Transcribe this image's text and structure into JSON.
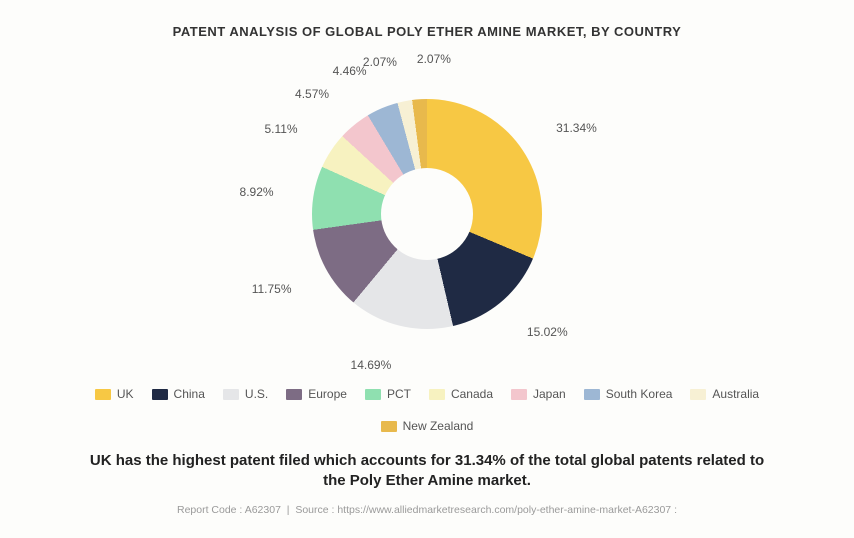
{
  "title": "PATENT ANALYSIS OF GLOBAL POLY ETHER AMINE MARKET, BY COUNTRY",
  "chart": {
    "type": "donut",
    "background_color": "#fdfdfb",
    "inner_radius_ratio": 0.4,
    "label_fontsize": 12,
    "label_color": "#555555",
    "slices": [
      {
        "name": "UK",
        "value": 31.34,
        "label": "31.34%",
        "color": "#f7c844"
      },
      {
        "name": "China",
        "value": 15.02,
        "label": "15.02%",
        "color": "#1f2a44"
      },
      {
        "name": "U.S.",
        "value": 14.69,
        "label": "14.69%",
        "color": "#e5e6e8"
      },
      {
        "name": "Europe",
        "value": 11.75,
        "label": "11.75%",
        "color": "#7d6c84"
      },
      {
        "name": "PCT",
        "value": 8.92,
        "label": "8.92%",
        "color": "#8fe0b0"
      },
      {
        "name": "Canada",
        "value": 5.11,
        "label": "5.11%",
        "color": "#f7f2c0"
      },
      {
        "name": "Japan",
        "value": 4.57,
        "label": "4.57%",
        "color": "#f3c6cd"
      },
      {
        "name": "South Korea",
        "value": 4.46,
        "label": "4.46%",
        "color": "#9db7d4"
      },
      {
        "name": "Australia",
        "value": 2.07,
        "label": "2.07%",
        "color": "#f7f0d4"
      },
      {
        "name": "New Zealand",
        "value": 2.07,
        "label": "2.07%",
        "color": "#e8b94c"
      }
    ]
  },
  "caption": "UK has the highest patent filed which accounts for 31.34% of the total global patents related to the Poly Ether Amine market.",
  "footer": {
    "report_code_label": "Report Code :",
    "report_code": "A62307",
    "source_label": "Source :",
    "source": "https://www.alliedmarketresearch.com/poly-ether-amine-market-A62307"
  }
}
